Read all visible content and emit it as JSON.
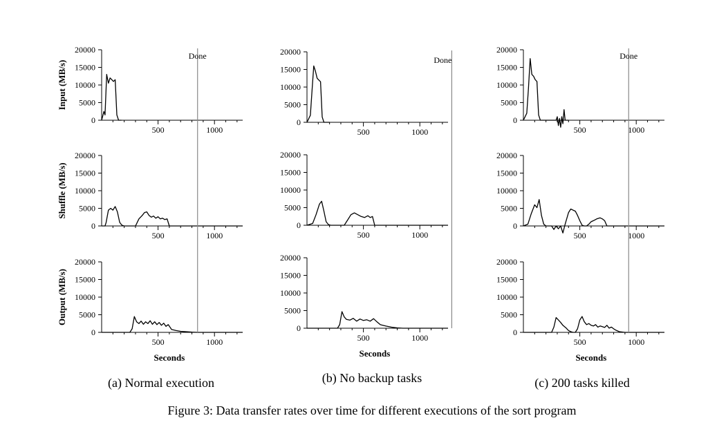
{
  "figure": {
    "caption": "Figure 3: Data transfer rates over time for different executions of the sort program"
  },
  "chart_data": [
    {
      "type": "line",
      "subcaption": "(a) Normal execution",
      "xlabel": "Seconds",
      "x_ticks": [
        500,
        1000
      ],
      "y_ticks": [
        0,
        5000,
        10000,
        15000,
        20000
      ],
      "done_label": "Done",
      "done_x": 850,
      "panels": [
        {
          "ylabel": "Input (MB/s)",
          "series": [
            {
              "x": [
                0,
                20,
                30,
                45,
                60,
                75,
                90,
                105,
                120,
                135,
                150,
                160,
                175
              ],
              "y": [
                0,
                2500,
                1500,
                13000,
                10500,
                12000,
                11500,
                11000,
                11500,
                1500,
                0,
                0,
                0
              ]
            }
          ]
        },
        {
          "ylabel": "Shuffle (MB/s)",
          "series": [
            {
              "x": [
                0,
                30,
                40,
                60,
                80,
                100,
                120,
                140,
                160,
                180,
                200,
                300,
                330,
                360,
                380,
                400,
                420,
                440,
                460,
                480,
                500,
                520,
                540,
                560,
                580,
                600,
                1250
              ],
              "y": [
                0,
                0,
                1000,
                4500,
                5000,
                4500,
                5500,
                4000,
                1000,
                200,
                0,
                0,
                2000,
                3000,
                3800,
                4000,
                3000,
                2500,
                2800,
                2200,
                2600,
                2000,
                2200,
                1800,
                2000,
                0,
                0
              ]
            }
          ]
        },
        {
          "ylabel": "Output (MB/s)",
          "series": [
            {
              "x": [
                0,
                250,
                270,
                290,
                310,
                330,
                350,
                370,
                390,
                410,
                430,
                450,
                470,
                490,
                510,
                530,
                550,
                570,
                590,
                620,
                660,
                700,
                760,
                800,
                850,
                1250
              ],
              "y": [
                0,
                0,
                1000,
                4500,
                3000,
                2500,
                3200,
                2300,
                3000,
                2500,
                3300,
                2300,
                3000,
                2200,
                2800,
                2000,
                2600,
                1700,
                2200,
                800,
                500,
                300,
                150,
                50,
                0,
                0
              ]
            }
          ]
        }
      ]
    },
    {
      "type": "line",
      "subcaption": "(b) No backup tasks",
      "xlabel": "Seconds",
      "x_ticks": [
        500,
        1000
      ],
      "y_ticks": [
        0,
        5000,
        10000,
        15000,
        20000
      ],
      "done_label": "Done",
      "done_x": 1283,
      "panels": [
        {
          "ylabel": "",
          "series": [
            {
              "x": [
                0,
                30,
                45,
                60,
                75,
                90,
                105,
                120,
                135,
                150,
                170,
                200
              ],
              "y": [
                0,
                2000,
                9000,
                16000,
                14500,
                12500,
                12000,
                11500,
                1500,
                0,
                0,
                0
              ]
            }
          ]
        },
        {
          "ylabel": "",
          "series": [
            {
              "x": [
                0,
                50,
                80,
                110,
                130,
                150,
                170,
                190,
                210,
                330,
                360,
                390,
                420,
                450,
                480,
                510,
                540,
                560,
                580,
                600,
                1250
              ],
              "y": [
                0,
                500,
                3000,
                6000,
                6800,
                4000,
                1000,
                200,
                0,
                0,
                1500,
                3000,
                3500,
                3000,
                2500,
                2200,
                2700,
                2200,
                2500,
                0,
                0
              ]
            }
          ]
        },
        {
          "ylabel": "",
          "series": [
            {
              "x": [
                0,
                270,
                290,
                310,
                330,
                350,
                380,
                410,
                440,
                470,
                500,
                530,
                560,
                590,
                620,
                650,
                700,
                750,
                800,
                850,
                1250
              ],
              "y": [
                0,
                0,
                1000,
                4700,
                3200,
                2500,
                2300,
                2800,
                2000,
                2600,
                2200,
                2400,
                2000,
                2700,
                1800,
                1000,
                600,
                300,
                100,
                0,
                0
              ]
            }
          ]
        }
      ]
    },
    {
      "type": "line",
      "subcaption": "(c) 200 tasks killed",
      "xlabel": "Seconds",
      "x_ticks": [
        500,
        1000
      ],
      "y_ticks": [
        0,
        5000,
        10000,
        15000,
        20000
      ],
      "done_label": "Done",
      "done_x": 933,
      "panels": [
        {
          "ylabel": "",
          "series": [
            {
              "x": [
                0,
                30,
                45,
                60,
                75,
                90,
                105,
                120,
                135,
                150,
                170,
                290,
                300,
                310,
                320,
                330,
                340,
                350,
                360,
                370,
                380,
                400
              ],
              "y": [
                0,
                2000,
                9000,
                17500,
                13000,
                12500,
                11500,
                11000,
                1500,
                0,
                0,
                0,
                1000,
                -1500,
                500,
                -2000,
                1000,
                -1000,
                3000,
                0,
                0,
                0
              ]
            }
          ]
        },
        {
          "ylabel": "",
          "series": [
            {
              "x": [
                0,
                40,
                70,
                100,
                120,
                140,
                160,
                180,
                200,
                250,
                270,
                290,
                310,
                330,
                350,
                370,
                400,
                420,
                440,
                460,
                480,
                500,
                520,
                540,
                560,
                580,
                600,
                620,
                650,
                680,
                700,
                720,
                740,
                1250
              ],
              "y": [
                0,
                500,
                3500,
                6000,
                5200,
                7500,
                3000,
                500,
                0,
                0,
                -1000,
                0,
                -800,
                0,
                -2000,
                500,
                3800,
                4800,
                4500,
                4200,
                3000,
                1500,
                200,
                0,
                0,
                500,
                1200,
                1500,
                2000,
                2300,
                2000,
                1500,
                0,
                0
              ]
            }
          ]
        },
        {
          "ylabel": "",
          "series": [
            {
              "x": [
                0,
                250,
                270,
                290,
                310,
                330,
                350,
                380,
                400,
                420,
                440,
                460,
                480,
                500,
                520,
                540,
                560,
                580,
                600,
                620,
                640,
                660,
                680,
                700,
                720,
                740,
                760,
                780,
                800,
                820,
                850,
                900,
                1250
              ],
              "y": [
                0,
                0,
                1500,
                4200,
                3500,
                2800,
                2000,
                1200,
                500,
                200,
                0,
                0,
                1000,
                3500,
                4500,
                3000,
                2200,
                2500,
                2000,
                1800,
                2200,
                1500,
                1800,
                1600,
                1400,
                2000,
                1200,
                1500,
                1000,
                600,
                200,
                0,
                0
              ]
            }
          ]
        }
      ]
    }
  ]
}
